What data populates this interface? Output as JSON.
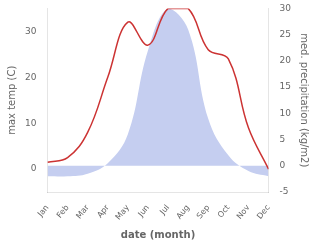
{
  "chart_data": {
    "type": "line",
    "xlabel": "date (month)",
    "ylabel": "max temp (C)",
    "y2label": "med. precipitation (kg/m2)",
    "categories": [
      "Jan",
      "Feb",
      "Mar",
      "Apr",
      "May",
      "Jun",
      "Jul",
      "Aug",
      "Sep",
      "Oct",
      "Nov",
      "Dec"
    ],
    "series": [
      {
        "type": "area",
        "color": "#c5cef0",
        "axis": "y2",
        "values": [
          -2,
          -2,
          -1.5,
          0.5,
          6,
          22,
          30,
          26,
          9,
          2,
          -1,
          -2
        ]
      },
      {
        "type": "line",
        "color": "#cc3333",
        "values": [
          1.5,
          2.5,
          8,
          20,
          32,
          27,
          35,
          35,
          26,
          24,
          9,
          0
        ]
      }
    ],
    "ylim": [
      -5,
      35
    ],
    "yticks": [
      0,
      10,
      20,
      30
    ],
    "y2lim": [
      -5,
      30
    ],
    "y2ticks": [
      -5,
      0,
      5,
      10,
      15,
      20,
      25,
      30
    ],
    "grid": false
  }
}
